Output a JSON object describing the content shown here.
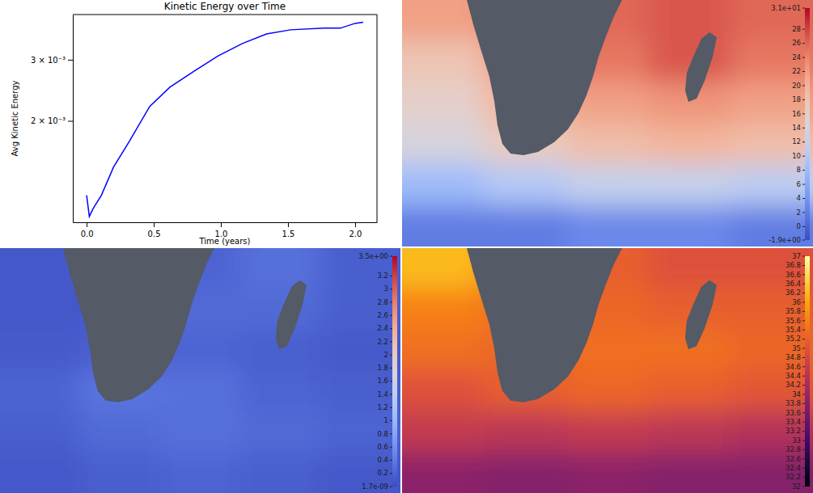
{
  "chart_data": [
    {
      "type": "line",
      "title": "Kinetic Energy over Time",
      "xlabel": "Time (years)",
      "ylabel": "Avg Kinetic Energy",
      "x": [
        0,
        0.02,
        0.05,
        0.11,
        0.2,
        0.32,
        0.47,
        0.62,
        0.8,
        0.98,
        1.16,
        1.34,
        1.52,
        1.77,
        1.89,
        2.0,
        2.06
      ],
      "series": [
        {
          "color": "#0000ff",
          "values": [
            0.00122,
            0.00106,
            0.00112,
            0.00122,
            0.00147,
            0.00175,
            0.0022,
            0.0025,
            0.00278,
            0.00308,
            0.00334,
            0.00356,
            0.00366,
            0.0037,
            0.0037,
            0.00382,
            0.00385
          ]
        }
      ],
      "xlim": [
        -0.103,
        2.163
      ],
      "xticks": [
        {
          "value": 0,
          "label": "0.0"
        },
        0.5,
        {
          "value": 1,
          "label": "1.0"
        },
        1.5,
        {
          "value": 2,
          "label": "2.0"
        }
      ],
      "ylim": [
        0.00102,
        0.00405
      ],
      "yticks": [
        {
          "value": 0.002,
          "label": "2 × 10⁻³"
        },
        {
          "value": 0.003,
          "label": "3 × 10⁻³"
        }
      ],
      "log": "y",
      "grid": false
    },
    {
      "type": "heatmap",
      "color": "coolwarm",
      "cells": [
        [
          22,
          24,
          26,
          27,
          26
        ],
        [
          18,
          22,
          25,
          27,
          25
        ],
        [
          16,
          20,
          22,
          23,
          22
        ],
        [
          14,
          17,
          19,
          20,
          19
        ],
        [
          8,
          10,
          12,
          12,
          11
        ],
        [
          2,
          2,
          3,
          3,
          2
        ]
      ],
      "colorbar": {
        "range": [
          -1.9,
          31
        ],
        "ticks": [
          {
            "value": -1.9,
            "label": "-1.9e+00"
          },
          0,
          2,
          4,
          6,
          8,
          10,
          12,
          14,
          16,
          18,
          20,
          22,
          24,
          26,
          28,
          {
            "value": 31,
            "label": "3.1e+01"
          }
        ]
      }
    },
    {
      "type": "heatmap",
      "color": "coolwarm",
      "cells": [
        [
          0.1,
          0.15,
          0.2,
          0.3,
          0.15
        ],
        [
          0.1,
          0.12,
          0.25,
          0.25,
          0.15
        ],
        [
          0.12,
          0.15,
          0.2,
          0.15,
          0.12
        ],
        [
          0.2,
          0.35,
          0.3,
          0.2,
          0.15
        ],
        [
          0.15,
          0.25,
          0.3,
          0.25,
          0.2
        ],
        [
          0.1,
          0.15,
          0.2,
          0.15,
          0.1
        ]
      ],
      "colorbar": {
        "range": [
          1.7e-09,
          3.5
        ],
        "ticks": [
          {
            "value": 1.7e-09,
            "label": "1.7e-09"
          },
          0.2,
          0.4,
          0.6,
          0.8,
          1,
          1.2,
          1.4,
          1.6,
          1.8,
          2,
          2.2,
          2.4,
          2.6,
          2.8,
          3,
          3.2,
          {
            "value": 3.5,
            "label": "3.5e+00"
          }
        ]
      }
    },
    {
      "type": "heatmap",
      "color": "inferno",
      "cells": [
        [
          36.2,
          35.4,
          35.2,
          35.0,
          35.0
        ],
        [
          35.6,
          35.4,
          35.3,
          35.2,
          35.2
        ],
        [
          35.4,
          35.3,
          35.4,
          35.4,
          35.3
        ],
        [
          35.0,
          35.2,
          35.3,
          35.2,
          35.1
        ],
        [
          34.6,
          34.5,
          34.6,
          34.5,
          34.4
        ],
        [
          33.9,
          33.8,
          33.9,
          33.8,
          33.8
        ]
      ],
      "colorbar": {
        "range": [
          32,
          37
        ],
        "ticks": [
          32,
          32.2,
          32.4,
          32.6,
          32.8,
          33,
          33.2,
          33.4,
          33.6,
          33.8,
          34,
          34.2,
          34.4,
          34.6,
          34.8,
          35,
          35.2,
          35.4,
          35.6,
          35.8,
          36,
          36.2,
          36.4,
          36.6,
          36.8,
          37
        ]
      }
    }
  ]
}
